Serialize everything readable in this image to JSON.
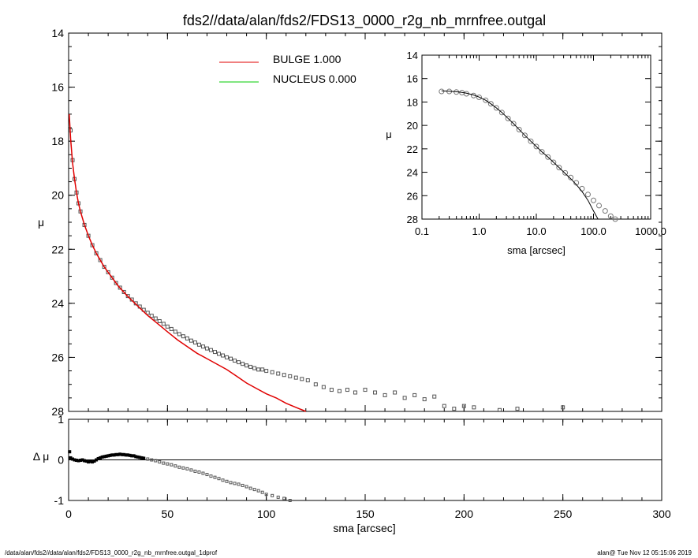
{
  "title": "fds2//data/alan/fds2/FDS13_0000_r2g_nb_mrnfree.outgal",
  "footer_left": "/data/alan/fds2//data/alan/fds2/FDS13_0000_r2g_nb_mrnfree.outgal_1dprof",
  "footer_right": "alan@  Tue Nov 12 05:15:06 2019",
  "colors": {
    "bulge": "#e00000",
    "nucleus": "#00cc00",
    "data": "#555555",
    "model": "#000000"
  },
  "chart_data": [
    {
      "type": "scatter",
      "panel": "main",
      "xlabel": "",
      "ylabel": "μ",
      "xlim": [
        0,
        300
      ],
      "ylim": [
        28,
        14
      ],
      "xticks": [
        "0",
        "50",
        "100",
        "150",
        "200",
        "250",
        "300"
      ],
      "yticks": [
        "14",
        "16",
        "18",
        "20",
        "22",
        "24",
        "26",
        "28"
      ],
      "legend": [
        {
          "label": "BULGE  1.000",
          "color": "#e00000"
        },
        {
          "label": "NUCLEUS  0.000",
          "color": "#00cc00"
        }
      ],
      "data_x": [
        1,
        2,
        3,
        4,
        5,
        6,
        8,
        10,
        12,
        14,
        16,
        18,
        20,
        22,
        24,
        26,
        28,
        30,
        32,
        34,
        36,
        38,
        40,
        42,
        44,
        46,
        48,
        50,
        52,
        54,
        56,
        58,
        60,
        62,
        64,
        66,
        68,
        70,
        72,
        74,
        76,
        78,
        80,
        82,
        84,
        86,
        88,
        90,
        92,
        94,
        96,
        98,
        100,
        103,
        106,
        109,
        112,
        115,
        118,
        121,
        125,
        129,
        133,
        137,
        141,
        145,
        150,
        155,
        160,
        165,
        170,
        175,
        180,
        185,
        190,
        195,
        200,
        205,
        218,
        227,
        250
      ],
      "data_y": [
        17.6,
        18.7,
        19.4,
        19.9,
        20.3,
        20.6,
        21.1,
        21.5,
        21.85,
        22.15,
        22.4,
        22.65,
        22.85,
        23.05,
        23.25,
        23.42,
        23.58,
        23.73,
        23.86,
        24.0,
        24.12,
        24.24,
        24.35,
        24.46,
        24.56,
        24.66,
        24.76,
        24.86,
        24.95,
        25.05,
        25.14,
        25.22,
        25.3,
        25.38,
        25.45,
        25.53,
        25.6,
        25.67,
        25.73,
        25.8,
        25.87,
        25.93,
        26.0,
        26.05,
        26.12,
        26.18,
        26.24,
        26.3,
        26.35,
        26.4,
        26.45,
        26.45,
        26.5,
        26.55,
        26.6,
        26.65,
        26.7,
        26.75,
        26.8,
        26.85,
        27.0,
        27.1,
        27.2,
        27.25,
        27.2,
        27.3,
        27.2,
        27.3,
        27.4,
        27.3,
        27.5,
        27.4,
        27.55,
        27.45,
        27.8,
        27.9,
        27.8,
        27.85,
        27.95,
        27.9,
        27.85
      ],
      "bulge_x": [
        0.3,
        1,
        2,
        3,
        4,
        5,
        6,
        8,
        10,
        12,
        14,
        16,
        18,
        20,
        25,
        30,
        35,
        40,
        45,
        50,
        55,
        60,
        65,
        70,
        75,
        80,
        85,
        90,
        95,
        100,
        105,
        110,
        115,
        120
      ],
      "bulge_y": [
        17.0,
        17.9,
        18.8,
        19.4,
        19.9,
        20.3,
        20.6,
        21.1,
        21.5,
        21.85,
        22.15,
        22.4,
        22.65,
        22.85,
        23.35,
        23.75,
        24.1,
        24.45,
        24.75,
        25.05,
        25.35,
        25.6,
        25.85,
        26.05,
        26.25,
        26.45,
        26.7,
        26.95,
        27.15,
        27.35,
        27.5,
        27.7,
        27.85,
        28.0
      ]
    },
    {
      "type": "scatter",
      "panel": "residual",
      "xlabel": "sma [arcsec]",
      "ylabel": "Δ μ",
      "xlim": [
        0,
        300
      ],
      "ylim": [
        -1,
        1
      ],
      "xticks": [
        "0",
        "50",
        "100",
        "150",
        "200",
        "250",
        "300"
      ],
      "yticks": [
        "-1",
        "0",
        "1"
      ],
      "data_x": [
        0.5,
        1,
        2,
        3,
        4,
        5,
        6,
        7,
        8,
        9,
        10,
        11,
        12,
        13,
        14,
        15,
        16,
        17,
        18,
        19,
        20,
        21,
        22,
        23,
        24,
        25,
        26,
        27,
        28,
        29,
        30,
        31,
        32,
        33,
        34,
        35,
        36,
        37,
        38,
        40,
        42,
        44,
        46,
        48,
        50,
        52,
        54,
        56,
        58,
        60,
        62,
        64,
        66,
        68,
        70,
        72,
        74,
        76,
        78,
        80,
        82,
        84,
        86,
        88,
        90,
        92,
        94,
        96,
        98,
        100,
        103,
        106,
        109,
        112
      ],
      "data_y": [
        0.2,
        0.05,
        0.02,
        0.0,
        -0.01,
        -0.02,
        -0.01,
        0.0,
        -0.02,
        -0.03,
        -0.05,
        -0.04,
        -0.05,
        -0.03,
        0.0,
        0.03,
        0.05,
        0.07,
        0.08,
        0.09,
        0.1,
        0.11,
        0.12,
        0.12,
        0.13,
        0.13,
        0.14,
        0.13,
        0.13,
        0.12,
        0.12,
        0.11,
        0.1,
        0.1,
        0.08,
        0.07,
        0.06,
        0.05,
        0.04,
        0.02,
        0.0,
        -0.02,
        -0.05,
        -0.08,
        -0.1,
        -0.12,
        -0.15,
        -0.18,
        -0.2,
        -0.22,
        -0.25,
        -0.28,
        -0.3,
        -0.33,
        -0.36,
        -0.4,
        -0.43,
        -0.46,
        -0.5,
        -0.53,
        -0.56,
        -0.58,
        -0.6,
        -0.63,
        -0.66,
        -0.7,
        -0.73,
        -0.76,
        -0.8,
        -0.85,
        -0.88,
        -0.92,
        -0.95,
        -1.0
      ],
      "zero_line": 0
    },
    {
      "type": "scatter",
      "panel": "inset",
      "xscale": "log",
      "xlabel": "sma [arcsec]",
      "ylabel": "μ",
      "xlim": [
        0.1,
        1000
      ],
      "ylim": [
        28,
        14
      ],
      "xticks": [
        "0.1",
        "1.0",
        "10.0",
        "100.0",
        "1000.0"
      ],
      "yticks": [
        "14",
        "16",
        "18",
        "20",
        "22",
        "24",
        "26",
        "28"
      ],
      "data_x": [
        0.22,
        0.3,
        0.4,
        0.5,
        0.6,
        0.8,
        1.0,
        1.3,
        1.6,
        2.0,
        2.5,
        3.2,
        4.0,
        5.0,
        6.3,
        8.0,
        10,
        12.5,
        16,
        20,
        25,
        32,
        40,
        50,
        63,
        80,
        100,
        125,
        160,
        200,
        240
      ],
      "data_y": [
        17.1,
        17.1,
        17.15,
        17.2,
        17.3,
        17.45,
        17.6,
        17.85,
        18.15,
        18.5,
        18.9,
        19.4,
        19.85,
        20.35,
        20.85,
        21.35,
        21.8,
        22.25,
        22.7,
        23.15,
        23.6,
        24.05,
        24.45,
        24.9,
        25.4,
        25.9,
        26.4,
        26.85,
        27.3,
        27.75,
        28.0
      ],
      "model_x": [
        0.22,
        0.3,
        0.4,
        0.5,
        0.6,
        0.8,
        1.0,
        1.3,
        1.6,
        2.0,
        2.5,
        3.2,
        4.0,
        5.0,
        6.3,
        8.0,
        10,
        12.5,
        16,
        20,
        25,
        32,
        40,
        50,
        63,
        80,
        100,
        120
      ],
      "model_y": [
        17.05,
        17.08,
        17.12,
        17.18,
        17.25,
        17.4,
        17.58,
        17.85,
        18.15,
        18.5,
        18.9,
        19.4,
        19.85,
        20.35,
        20.85,
        21.35,
        21.8,
        22.25,
        22.7,
        23.15,
        23.6,
        24.1,
        24.55,
        25.05,
        25.65,
        26.4,
        27.3,
        28.0
      ]
    }
  ]
}
